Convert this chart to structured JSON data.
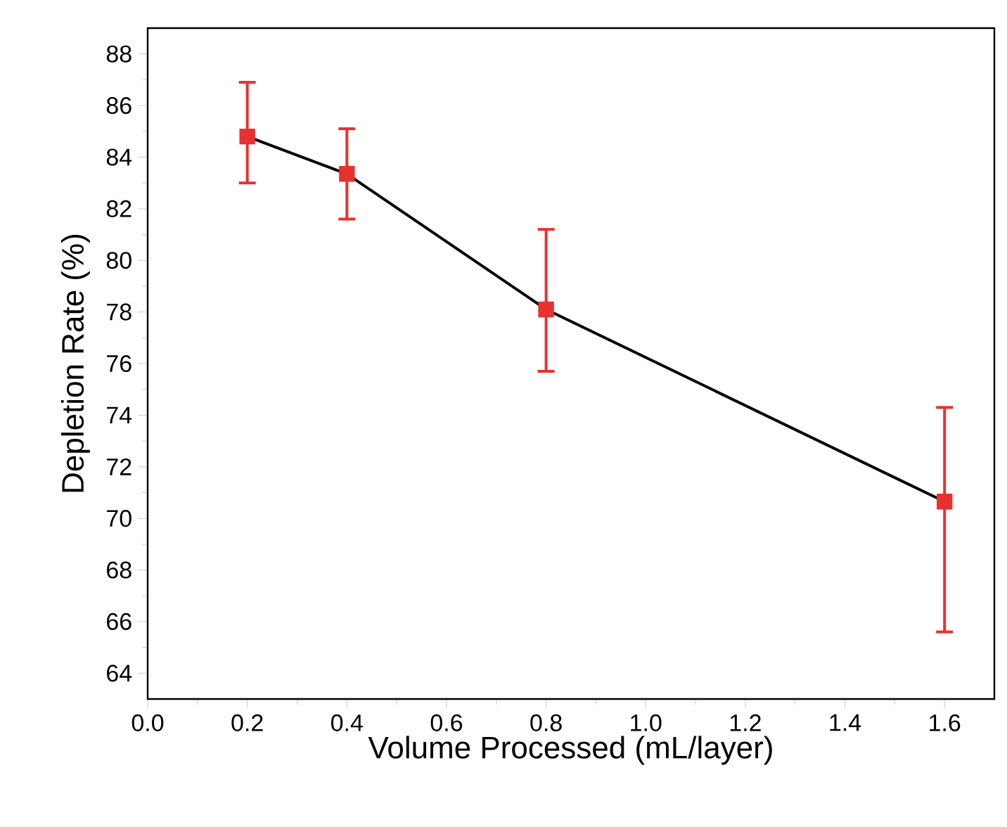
{
  "chart_data": {
    "type": "line",
    "xlabel": "Volume Processed (mL/layer)",
    "ylabel": "Depletion Rate (%)",
    "x": [
      0.2,
      0.4,
      0.8,
      1.6
    ],
    "series": [
      {
        "marker": "square",
        "color": "#000000",
        "colors": [
          "#e8312f",
          "#e8312f",
          "#e8312f",
          "#e8312f"
        ],
        "values": [
          84.8,
          83.35,
          78.1,
          70.65
        ],
        "errors": [
          [
            83.0,
            86.9
          ],
          [
            81.6,
            85.1
          ],
          [
            75.7,
            81.2
          ],
          [
            65.6,
            74.3
          ]
        ]
      }
    ],
    "line_style": "solid",
    "xlim": [
      0,
      1.7
    ],
    "ylim": [
      63,
      89
    ],
    "xticks": [
      {
        "value": 0,
        "label": "0.0"
      },
      0.2,
      0.4,
      0.6,
      0.8,
      {
        "value": 1,
        "label": "1.0"
      },
      1.2,
      1.4,
      1.6
    ],
    "yticks": [
      64,
      66,
      68,
      70,
      72,
      74,
      76,
      78,
      80,
      82,
      84,
      86,
      88
    ]
  }
}
